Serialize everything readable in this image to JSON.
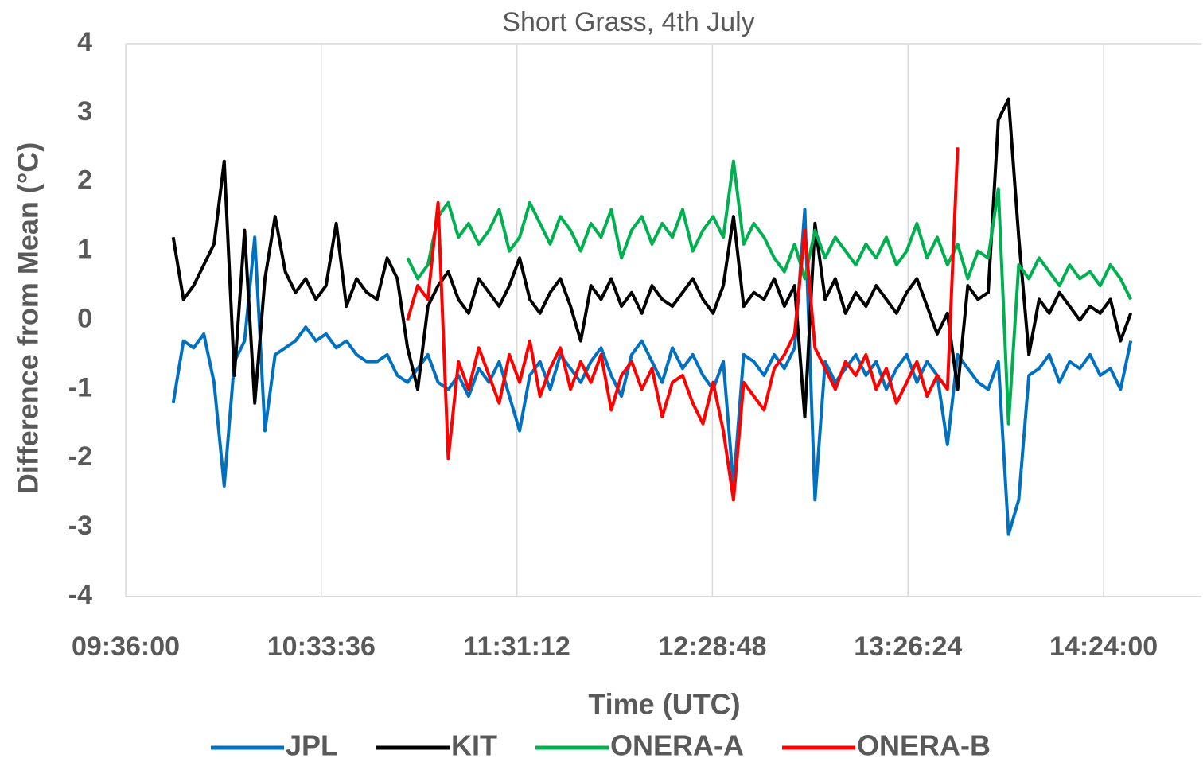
{
  "chart_data": {
    "type": "line",
    "title": "Short Grass, 4th July",
    "x_label": "Time (UTC)",
    "y_label": "Difference from Mean (°C)",
    "x": [
      590,
      593,
      596,
      599,
      602,
      605,
      608,
      611,
      614,
      617,
      620,
      623,
      626,
      629,
      632,
      635,
      638,
      641,
      644,
      647,
      650,
      653,
      656,
      659,
      662,
      665,
      668,
      671,
      674,
      677,
      680,
      683,
      686,
      689,
      692,
      695,
      698,
      701,
      704,
      707,
      710,
      713,
      716,
      719,
      722,
      725,
      728,
      731,
      734,
      737,
      740,
      743,
      746,
      749,
      752,
      755,
      758,
      761,
      764,
      767,
      770,
      773,
      776,
      779,
      782,
      785,
      788,
      791,
      794,
      797,
      800,
      803,
      806,
      809,
      812,
      815,
      818,
      821,
      824,
      827,
      830,
      833,
      836,
      839,
      842,
      845,
      848,
      851,
      854,
      857,
      860,
      863,
      866,
      869,
      872
    ],
    "series": [
      {
        "name": "JPL",
        "color": "#0070c0",
        "values": [
          -1.2,
          -0.3,
          -0.4,
          -0.2,
          -0.9,
          -2.4,
          -0.6,
          -0.3,
          1.2,
          -1.6,
          -0.5,
          -0.4,
          -0.3,
          -0.1,
          -0.3,
          -0.2,
          -0.4,
          -0.3,
          -0.5,
          -0.6,
          -0.6,
          -0.5,
          -0.8,
          -0.9,
          -0.7,
          -0.5,
          -0.9,
          -1.0,
          -0.8,
          -1.1,
          -0.7,
          -0.9,
          -0.6,
          -1.1,
          -1.6,
          -0.8,
          -0.6,
          -1.0,
          -0.5,
          -0.7,
          -0.9,
          -0.6,
          -0.4,
          -0.8,
          -1.1,
          -0.5,
          -0.3,
          -0.6,
          -0.9,
          -0.4,
          -0.7,
          -0.5,
          -0.8,
          -1.0,
          -0.6,
          -2.4,
          -0.5,
          -0.6,
          -0.8,
          -0.5,
          -0.7,
          -0.4,
          1.6,
          -2.6,
          -0.6,
          -0.9,
          -0.7,
          -0.5,
          -0.8,
          -0.6,
          -1.0,
          -0.7,
          -0.5,
          -0.9,
          -0.6,
          -0.8,
          -1.8,
          -0.5,
          -0.7,
          -0.9,
          -1.0,
          -0.6,
          -3.1,
          -2.6,
          -0.8,
          -0.7,
          -0.5,
          -0.9,
          -0.6,
          -0.7,
          -0.5,
          -0.8,
          -0.7,
          -1.0,
          -0.3
        ]
      },
      {
        "name": "KIT",
        "color": "#000000",
        "values": [
          1.2,
          0.3,
          0.5,
          0.8,
          1.1,
          2.3,
          -0.8,
          1.3,
          -1.2,
          0.6,
          1.5,
          0.7,
          0.4,
          0.6,
          0.3,
          0.5,
          1.4,
          0.2,
          0.6,
          0.4,
          0.3,
          0.9,
          0.6,
          -0.4,
          -1.0,
          0.2,
          0.5,
          0.7,
          0.3,
          0.1,
          0.6,
          0.4,
          0.2,
          0.5,
          0.9,
          0.3,
          0.1,
          0.4,
          0.6,
          0.2,
          -0.3,
          0.5,
          0.3,
          0.6,
          0.2,
          0.4,
          0.1,
          0.5,
          0.3,
          0.2,
          0.4,
          0.6,
          0.3,
          0.1,
          0.5,
          1.5,
          0.2,
          0.4,
          0.3,
          0.6,
          0.2,
          0.5,
          -1.4,
          1.4,
          0.3,
          0.6,
          0.1,
          0.4,
          0.2,
          0.5,
          0.3,
          0.1,
          0.4,
          0.6,
          0.2,
          -0.2,
          0.1,
          -1.0,
          0.5,
          0.3,
          0.4,
          2.9,
          3.2,
          1.2,
          -0.5,
          0.3,
          0.1,
          0.4,
          0.2,
          0.0,
          0.2,
          0.1,
          0.3,
          -0.3,
          0.1
        ]
      },
      {
        "name": "ONERA-A",
        "color": "#00b050",
        "values": [
          null,
          null,
          null,
          null,
          null,
          null,
          null,
          null,
          null,
          null,
          null,
          null,
          null,
          null,
          null,
          null,
          null,
          null,
          null,
          null,
          null,
          null,
          null,
          0.9,
          0.6,
          0.8,
          1.5,
          1.7,
          1.2,
          1.4,
          1.1,
          1.3,
          1.6,
          1.0,
          1.2,
          1.7,
          1.4,
          1.1,
          1.5,
          1.3,
          1.0,
          1.4,
          1.2,
          1.6,
          0.9,
          1.3,
          1.5,
          1.1,
          1.4,
          1.2,
          1.6,
          1.0,
          1.3,
          1.5,
          1.2,
          2.3,
          1.1,
          1.4,
          1.2,
          0.9,
          0.7,
          1.1,
          0.6,
          1.3,
          0.9,
          1.2,
          1.0,
          0.8,
          1.1,
          0.9,
          1.2,
          0.8,
          1.0,
          1.4,
          0.9,
          1.2,
          0.8,
          1.1,
          0.6,
          1.0,
          0.9,
          1.9,
          -1.5,
          0.8,
          0.6,
          0.9,
          0.7,
          0.5,
          0.8,
          0.6,
          0.7,
          0.5,
          0.8,
          0.6,
          0.3
        ]
      },
      {
        "name": "ONERA-B",
        "color": "#ff0000",
        "values": [
          null,
          null,
          null,
          null,
          null,
          null,
          null,
          null,
          null,
          null,
          null,
          null,
          null,
          null,
          null,
          null,
          null,
          null,
          null,
          null,
          null,
          null,
          null,
          0.0,
          0.5,
          0.3,
          1.7,
          -2.0,
          -0.6,
          -1.0,
          -0.4,
          -0.8,
          -1.2,
          -0.5,
          -0.9,
          -0.3,
          -1.1,
          -0.7,
          -0.4,
          -1.0,
          -0.6,
          -0.9,
          -0.5,
          -1.3,
          -0.8,
          -0.6,
          -1.0,
          -0.7,
          -1.4,
          -0.9,
          -0.8,
          -1.2,
          -1.5,
          -0.9,
          -1.6,
          -2.6,
          -0.9,
          -1.1,
          -1.3,
          -0.7,
          -0.5,
          -0.2,
          1.3,
          -0.4,
          -0.7,
          -1.0,
          -0.6,
          -0.8,
          -0.5,
          -1.0,
          -0.7,
          -1.2,
          -0.9,
          -0.6,
          -1.1,
          -0.8,
          -1.0,
          2.5,
          null,
          null,
          null,
          null,
          null,
          null,
          null,
          null,
          null,
          null,
          null,
          null,
          null,
          null,
          null,
          null,
          null
        ]
      }
    ],
    "xlim": [
      576,
      892.8
    ],
    "xticks": [
      {
        "value": 576,
        "label": "09:36:00"
      },
      {
        "value": 633.6,
        "label": "10:33:36"
      },
      {
        "value": 691.2,
        "label": "11:31:12"
      },
      {
        "value": 748.8,
        "label": "12:28:48"
      },
      {
        "value": 806.4,
        "label": "13:26:24"
      },
      {
        "value": 864,
        "label": "14:24:00"
      }
    ],
    "ylim": [
      -4,
      4
    ],
    "yticks": [
      -4,
      -3,
      -2,
      -1,
      0,
      1,
      2,
      3,
      4
    ],
    "grid": "x",
    "legend": "bottom"
  }
}
